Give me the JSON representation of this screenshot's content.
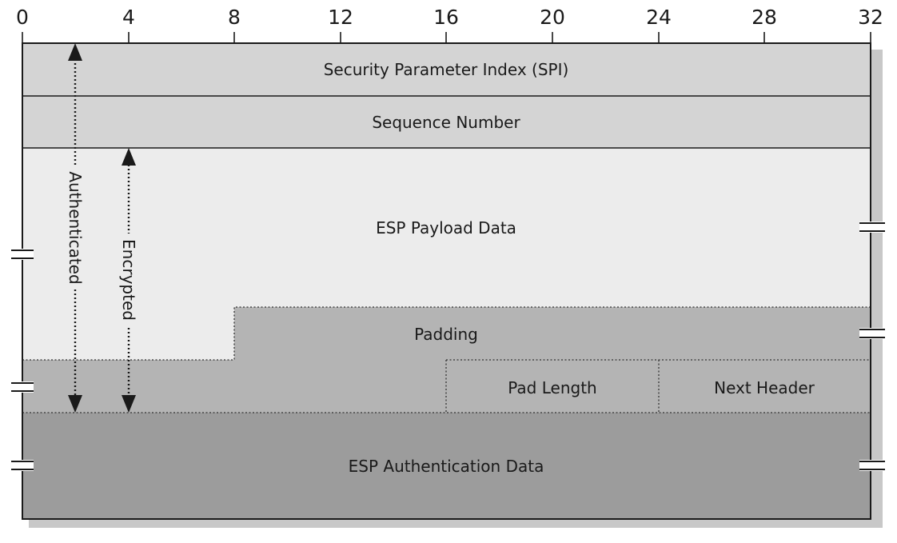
{
  "ruler": {
    "ticks": [
      "0",
      "4",
      "8",
      "12",
      "16",
      "20",
      "24",
      "28",
      "32"
    ]
  },
  "fields": {
    "spi": "Security Parameter Index (SPI)",
    "sequence": "Sequence Number",
    "payload": "ESP Payload Data",
    "padding": "Padding",
    "pad_length": "Pad Length",
    "next_header": "Next Header",
    "auth_data": "ESP Authentication Data"
  },
  "arrows": {
    "authenticated": "Authenticated",
    "encrypted": "Encrypted"
  },
  "colors": {
    "header_fill": "#d4d4d4",
    "payload_fill": "#ececec",
    "padding_fill": "#b4b4b4",
    "auth_fill": "#9c9c9c",
    "shadow": "#c8c8c8",
    "stroke": "#1a1a1a"
  }
}
